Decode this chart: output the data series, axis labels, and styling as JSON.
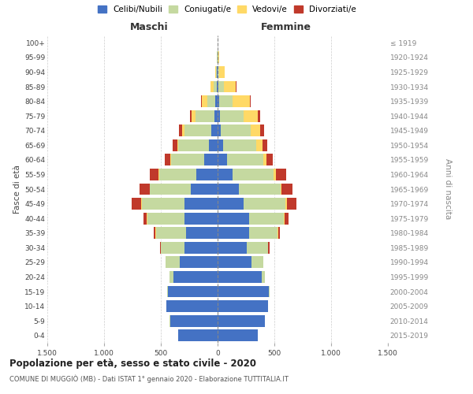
{
  "age_groups": [
    "0-4",
    "5-9",
    "10-14",
    "15-19",
    "20-24",
    "25-29",
    "30-34",
    "35-39",
    "40-44",
    "45-49",
    "50-54",
    "55-59",
    "60-64",
    "65-69",
    "70-74",
    "75-79",
    "80-84",
    "85-89",
    "90-94",
    "95-99",
    "100+"
  ],
  "birth_years": [
    "2015-2019",
    "2010-2014",
    "2005-2009",
    "2000-2004",
    "1995-1999",
    "1990-1994",
    "1985-1989",
    "1980-1984",
    "1975-1979",
    "1970-1974",
    "1965-1969",
    "1960-1964",
    "1955-1959",
    "1950-1954",
    "1945-1949",
    "1940-1944",
    "1935-1939",
    "1930-1934",
    "1925-1929",
    "1920-1924",
    "≤ 1919"
  ],
  "maschi": {
    "celibi": [
      350,
      420,
      450,
      440,
      390,
      330,
      290,
      280,
      290,
      295,
      235,
      185,
      115,
      75,
      55,
      28,
      18,
      8,
      4,
      2,
      0
    ],
    "coniugati": [
      0,
      1,
      2,
      4,
      35,
      125,
      210,
      265,
      330,
      375,
      360,
      330,
      295,
      270,
      240,
      165,
      75,
      25,
      8,
      2,
      0
    ],
    "vedovi": [
      0,
      0,
      0,
      0,
      0,
      1,
      1,
      2,
      4,
      5,
      5,
      5,
      8,
      12,
      18,
      35,
      45,
      28,
      10,
      2,
      1
    ],
    "divorziati": [
      0,
      0,
      0,
      0,
      2,
      4,
      8,
      18,
      28,
      80,
      88,
      78,
      48,
      38,
      28,
      18,
      8,
      4,
      0,
      0,
      0
    ]
  },
  "femmine": {
    "nubili": [
      355,
      415,
      445,
      450,
      390,
      300,
      260,
      275,
      275,
      230,
      185,
      135,
      80,
      48,
      28,
      18,
      12,
      8,
      3,
      2,
      0
    ],
    "coniugate": [
      0,
      1,
      2,
      5,
      28,
      100,
      185,
      255,
      310,
      370,
      370,
      360,
      325,
      295,
      265,
      210,
      118,
      45,
      12,
      4,
      0
    ],
    "vedove": [
      0,
      0,
      0,
      0,
      0,
      1,
      2,
      3,
      5,
      8,
      10,
      20,
      28,
      55,
      85,
      125,
      155,
      108,
      48,
      10,
      2
    ],
    "divorziate": [
      0,
      0,
      0,
      0,
      2,
      4,
      8,
      18,
      32,
      88,
      98,
      88,
      52,
      42,
      32,
      20,
      8,
      4,
      0,
      0,
      0
    ]
  },
  "colors": {
    "celibi": "#4472C4",
    "coniugati": "#C5D9A0",
    "vedovi": "#FFD966",
    "divorziati": "#C0392B"
  },
  "xlim": 1500,
  "title": "Popolazione per età, sesso e stato civile - 2020",
  "subtitle": "COMUNE DI MUGGIÒ (MB) - Dati ISTAT 1° gennaio 2020 - Elaborazione TUTTITALIA.IT",
  "xlabel_left": "Maschi",
  "xlabel_right": "Femmine",
  "ylabel_left": "Fasce di età",
  "ylabel_right": "Anni di nascita",
  "legend_labels": [
    "Celibi/Nubili",
    "Coniugati/e",
    "Vedovi/e",
    "Divorziati/e"
  ],
  "xtick_vals": [
    -1500,
    -1000,
    -500,
    0,
    500,
    1000,
    1500
  ],
  "xtick_labs": [
    "1.500",
    "1.000",
    "500",
    "0",
    "500",
    "1.000",
    "1.500"
  ]
}
